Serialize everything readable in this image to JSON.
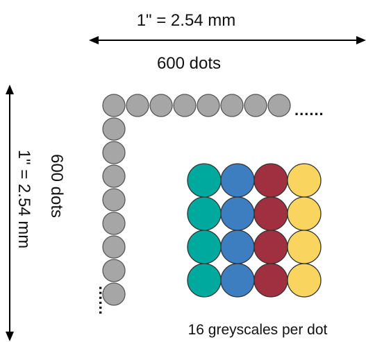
{
  "horizontal": {
    "measure": "1\" = 2.54 mm",
    "dots": "600 dots",
    "ellipsis": "......"
  },
  "vertical": {
    "measure": "1\" = 2.54 mm",
    "dots": "600 dots",
    "ellipsis": "......"
  },
  "grid": {
    "caption": "16 greyscales per dot",
    "rows": 4,
    "columns": [
      "#00A99D",
      "#3D7EC0",
      "#A0303F",
      "#F9D55F"
    ]
  },
  "dots": {
    "color": "#A6A6A6",
    "outline": "#555555",
    "horizontal_count": 8,
    "vertical_count": 8
  },
  "arrow_color": "#000000"
}
